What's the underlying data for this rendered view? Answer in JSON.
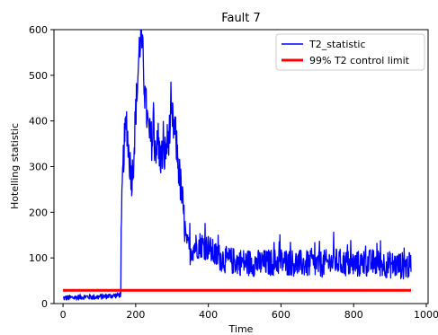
{
  "chart_data": {
    "type": "line",
    "title": "Fault 7",
    "xlabel": "Time",
    "ylabel": "Hotelling statistic",
    "xlim": [
      -25,
      1005
    ],
    "ylim": [
      0,
      600
    ],
    "x_ticks": [
      0,
      200,
      400,
      600,
      800,
      1000
    ],
    "y_ticks": [
      0,
      100,
      200,
      300,
      400,
      500,
      600
    ],
    "grid": false,
    "legend_position": "top-right",
    "series": [
      {
        "name": "T2_statistic",
        "color": "#0000ff",
        "anchors": [
          [
            0,
            12
          ],
          [
            30,
            13
          ],
          [
            60,
            15
          ],
          [
            90,
            14
          ],
          [
            120,
            16
          ],
          [
            150,
            18
          ],
          [
            159,
            20
          ],
          [
            160,
            120
          ],
          [
            163,
            250
          ],
          [
            167,
            330
          ],
          [
            170,
            360
          ],
          [
            175,
            400
          ],
          [
            180,
            340
          ],
          [
            185,
            300
          ],
          [
            190,
            275
          ],
          [
            195,
            330
          ],
          [
            200,
            420
          ],
          [
            205,
            480
          ],
          [
            210,
            560
          ],
          [
            215,
            590
          ],
          [
            220,
            540
          ],
          [
            225,
            460
          ],
          [
            230,
            420
          ],
          [
            235,
            380
          ],
          [
            240,
            360
          ],
          [
            250,
            355
          ],
          [
            260,
            340
          ],
          [
            270,
            320
          ],
          [
            280,
            325
          ],
          [
            290,
            365
          ],
          [
            300,
            405
          ],
          [
            310,
            365
          ],
          [
            320,
            285
          ],
          [
            330,
            210
          ],
          [
            340,
            125
          ],
          [
            350,
            115
          ],
          [
            360,
            125
          ],
          [
            380,
            130
          ],
          [
            400,
            122
          ],
          [
            420,
            105
          ],
          [
            450,
            95
          ],
          [
            500,
            90
          ],
          [
            550,
            88
          ],
          [
            600,
            92
          ],
          [
            650,
            88
          ],
          [
            700,
            85
          ],
          [
            750,
            92
          ],
          [
            800,
            85
          ],
          [
            850,
            90
          ],
          [
            900,
            85
          ],
          [
            958,
            82
          ]
        ],
        "noise_amplitude": [
          [
            0,
            6
          ],
          [
            159,
            6
          ],
          [
            160,
            45
          ],
          [
            330,
            45
          ],
          [
            340,
            30
          ],
          [
            958,
            30
          ]
        ]
      },
      {
        "name": "99% T2 control limit",
        "color": "#ff0000",
        "x": [
          0,
          958
        ],
        "y": [
          29,
          29
        ]
      }
    ]
  }
}
